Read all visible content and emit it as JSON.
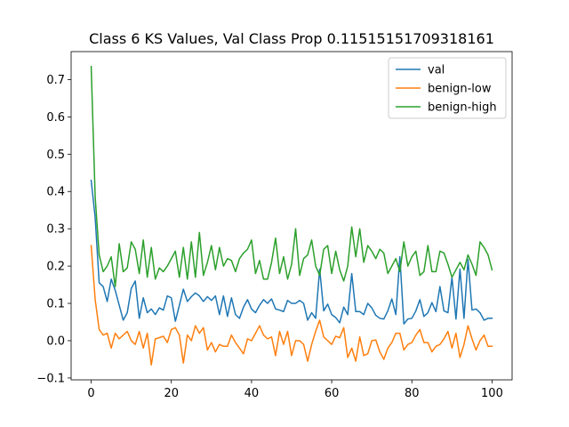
{
  "chart_data": {
    "type": "line",
    "title": "Class 6 KS Values, Val Class Prop 0.11515151709318161",
    "xlabel": "",
    "ylabel": "",
    "xlim": [
      -5,
      105
    ],
    "ylim": [
      -0.105,
      0.775
    ],
    "xticks": [
      0,
      20,
      40,
      60,
      80,
      100
    ],
    "yticks": [
      -0.1,
      0.0,
      0.1,
      0.2,
      0.3,
      0.4,
      0.5,
      0.6,
      0.7
    ],
    "xtick_labels": [
      "0",
      "20",
      "40",
      "60",
      "80",
      "100"
    ],
    "ytick_labels": [
      "−0.1",
      "0.0",
      "0.1",
      "0.2",
      "0.3",
      "0.4",
      "0.5",
      "0.6",
      "0.7"
    ],
    "legend_position": "top-right",
    "series": [
      {
        "name": "val",
        "color": "#1f77b4",
        "values": [
          0.43,
          0.33,
          0.155,
          0.145,
          0.105,
          0.165,
          0.135,
          0.095,
          0.055,
          0.075,
          0.14,
          0.16,
          0.06,
          0.115,
          0.075,
          0.085,
          0.07,
          0.088,
          0.082,
          0.12,
          0.115,
          0.052,
          0.095,
          0.138,
          0.105,
          0.118,
          0.128,
          0.12,
          0.105,
          0.118,
          0.108,
          0.12,
          0.07,
          0.12,
          0.065,
          0.115,
          0.07,
          0.06,
          0.09,
          0.11,
          0.085,
          0.075,
          0.095,
          0.11,
          0.1,
          0.112,
          0.085,
          0.082,
          0.078,
          0.108,
          0.1,
          0.1,
          0.108,
          0.1,
          0.055,
          0.075,
          0.06,
          0.192,
          0.08,
          0.098,
          0.07,
          0.062,
          0.048,
          0.09,
          0.07,
          0.18,
          0.078,
          0.078,
          0.07,
          0.1,
          0.088,
          0.068,
          0.06,
          0.058,
          0.08,
          0.112,
          0.07,
          0.225,
          0.045,
          0.058,
          0.06,
          0.08,
          0.11,
          0.065,
          0.075,
          0.102,
          0.078,
          0.145,
          0.08,
          0.075,
          0.17,
          0.058,
          0.192,
          0.06,
          0.218,
          0.082,
          0.085,
          0.075,
          0.055,
          0.06,
          0.06
        ]
      },
      {
        "name": "benign-low",
        "color": "#ff7f0e",
        "values": [
          0.255,
          0.11,
          0.03,
          0.015,
          0.02,
          -0.02,
          0.02,
          0.005,
          0.015,
          0.025,
          0.0,
          -0.01,
          0.025,
          -0.02,
          0.02,
          -0.065,
          0.005,
          0.008,
          0.012,
          -0.005,
          0.03,
          0.035,
          0.015,
          -0.06,
          0.015,
          0.0,
          0.04,
          0.02,
          0.035,
          -0.025,
          -0.005,
          -0.03,
          -0.01,
          -0.015,
          -0.015,
          0.015,
          -0.005,
          -0.02,
          -0.035,
          0.005,
          0.0,
          0.02,
          0.04,
          0.015,
          0.005,
          0.01,
          -0.04,
          0.025,
          -0.01,
          0.025,
          -0.04,
          0.0,
          0.0,
          -0.01,
          -0.055,
          -0.01,
          0.025,
          0.055,
          0.01,
          0.0,
          -0.01,
          0.012,
          0.008,
          0.035,
          -0.045,
          -0.02,
          -0.055,
          0.01,
          -0.04,
          -0.035,
          0.0,
          0.002,
          -0.03,
          -0.05,
          -0.02,
          -0.005,
          0.02,
          0.02,
          -0.025,
          -0.01,
          -0.005,
          0.015,
          0.03,
          -0.005,
          -0.005,
          -0.03,
          -0.015,
          -0.01,
          0.005,
          0.025,
          -0.02,
          0.02,
          -0.045,
          -0.01,
          0.04,
          0.005,
          -0.025,
          0.0,
          0.015,
          -0.015,
          -0.015
        ]
      },
      {
        "name": "benign-high",
        "color": "#2ca02c",
        "values": [
          0.735,
          0.385,
          0.23,
          0.185,
          0.2,
          0.225,
          0.145,
          0.26,
          0.185,
          0.195,
          0.265,
          0.245,
          0.18,
          0.27,
          0.17,
          0.25,
          0.165,
          0.195,
          0.185,
          0.2,
          0.22,
          0.24,
          0.17,
          0.25,
          0.165,
          0.265,
          0.17,
          0.29,
          0.175,
          0.21,
          0.255,
          0.19,
          0.25,
          0.2,
          0.22,
          0.215,
          0.185,
          0.22,
          0.235,
          0.245,
          0.27,
          0.18,
          0.215,
          0.165,
          0.165,
          0.21,
          0.275,
          0.18,
          0.225,
          0.165,
          0.205,
          0.3,
          0.175,
          0.22,
          0.23,
          0.27,
          0.2,
          0.175,
          0.245,
          0.255,
          0.18,
          0.24,
          0.19,
          0.16,
          0.2,
          0.305,
          0.225,
          0.3,
          0.21,
          0.255,
          0.24,
          0.22,
          0.245,
          0.235,
          0.18,
          0.2,
          0.22,
          0.185,
          0.265,
          0.2,
          0.225,
          0.24,
          0.175,
          0.185,
          0.255,
          0.185,
          0.185,
          0.24,
          0.235,
          0.205,
          0.17,
          0.19,
          0.21,
          0.19,
          0.23,
          0.205,
          0.175,
          0.265,
          0.25,
          0.23,
          0.19
        ]
      }
    ]
  }
}
